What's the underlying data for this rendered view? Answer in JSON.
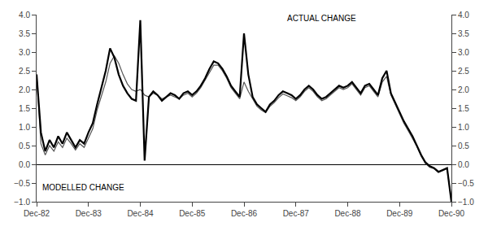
{
  "chart_data": {
    "type": "line",
    "categories": [
      "Dec-82",
      null,
      null,
      null,
      null,
      null,
      null,
      null,
      null,
      null,
      null,
      null,
      "Dec-83",
      null,
      null,
      null,
      null,
      null,
      null,
      null,
      null,
      null,
      null,
      null,
      "Dec-84",
      null,
      null,
      null,
      null,
      null,
      null,
      null,
      null,
      null,
      null,
      null,
      "Dec-85",
      null,
      null,
      null,
      null,
      null,
      null,
      null,
      null,
      null,
      null,
      null,
      "Dec-86",
      null,
      null,
      null,
      null,
      null,
      null,
      null,
      null,
      null,
      null,
      null,
      "Dec-87",
      null,
      null,
      null,
      null,
      null,
      null,
      null,
      null,
      null,
      null,
      null,
      "Dec-88",
      null,
      null,
      null,
      null,
      null,
      null,
      null,
      null,
      null,
      null,
      null,
      "Dec-89",
      null,
      null,
      null,
      null,
      null,
      null,
      null,
      null,
      null,
      null,
      null,
      "Dec-90"
    ],
    "series": [
      {
        "color": "#555555",
        "values": [
          2.4,
          0.55,
          0.25,
          0.5,
          0.35,
          0.6,
          0.45,
          0.7,
          0.55,
          0.38,
          0.55,
          0.45,
          0.7,
          0.95,
          1.45,
          1.85,
          2.2,
          2.7,
          2.9,
          2.7,
          2.4,
          2.15,
          2.0,
          1.95,
          2.0,
          1.85,
          1.8,
          1.9,
          1.85,
          1.75,
          1.8,
          1.85,
          1.8,
          1.75,
          1.85,
          1.9,
          1.8,
          1.9,
          2.05,
          2.25,
          2.45,
          2.65,
          2.65,
          2.5,
          2.3,
          2.05,
          1.9,
          1.75,
          2.2,
          1.95,
          1.75,
          1.55,
          1.45,
          1.38,
          1.55,
          1.65,
          1.78,
          1.88,
          1.83,
          1.78,
          1.7,
          1.8,
          1.95,
          2.05,
          1.95,
          1.8,
          1.7,
          1.75,
          1.85,
          1.95,
          2.05,
          2.0,
          2.05,
          2.15,
          2.0,
          1.85,
          2.05,
          2.1,
          1.95,
          1.8,
          2.2,
          2.35,
          1.85,
          1.6,
          1.35,
          1.1,
          0.9,
          0.7,
          0.48,
          0.22,
          0.02,
          -0.08,
          -0.12,
          -0.22,
          -0.17,
          -0.12,
          -0.95
        ]
      },
      {
        "color": "#000000",
        "values": [
          2.4,
          0.85,
          0.35,
          0.65,
          0.45,
          0.75,
          0.55,
          0.85,
          0.65,
          0.45,
          0.65,
          0.55,
          0.85,
          1.1,
          1.6,
          2.05,
          2.5,
          3.1,
          2.85,
          2.4,
          2.1,
          1.9,
          1.75,
          1.7,
          3.85,
          0.1,
          1.8,
          1.95,
          1.85,
          1.7,
          1.8,
          1.9,
          1.85,
          1.75,
          1.9,
          1.95,
          1.85,
          1.95,
          2.1,
          2.3,
          2.55,
          2.75,
          2.7,
          2.55,
          2.35,
          2.1,
          1.95,
          1.8,
          3.5,
          2.4,
          1.8,
          1.6,
          1.5,
          1.4,
          1.6,
          1.7,
          1.85,
          1.95,
          1.9,
          1.85,
          1.75,
          1.85,
          2.0,
          2.1,
          2.0,
          1.85,
          1.75,
          1.8,
          1.9,
          2.0,
          2.1,
          2.05,
          2.1,
          2.2,
          2.05,
          1.9,
          2.1,
          2.15,
          2.0,
          1.85,
          2.3,
          2.5,
          1.9,
          1.65,
          1.4,
          1.15,
          0.95,
          0.75,
          0.5,
          0.25,
          0.05,
          -0.05,
          -0.1,
          -0.2,
          -0.15,
          -0.1,
          -1.0
        ]
      }
    ],
    "annotations": [
      "ACTUAL CHANGE",
      "MODELLED CHANGE"
    ],
    "ylim": [
      -1,
      4
    ],
    "yticks": [
      {
        "value": -1,
        "label": "−1.0"
      },
      {
        "value": -0.5,
        "label": "−0.5"
      },
      {
        "value": 0,
        "label": "0.0"
      },
      0.5,
      {
        "value": 1,
        "label": "1.0"
      },
      1.5,
      {
        "value": 2,
        "label": "2.0"
      },
      2.5,
      {
        "value": 3,
        "label": "3.0"
      },
      3.5,
      {
        "value": 4,
        "label": "4.0"
      }
    ],
    "y2lim": [
      -1,
      4
    ],
    "y2ticks": [
      {
        "value": -1,
        "label": "−1.0"
      },
      {
        "value": -0.5,
        "label": "−0.5"
      },
      {
        "value": 0,
        "label": "0.0"
      },
      0.5,
      {
        "value": 1,
        "label": "1.0"
      },
      1.5,
      {
        "value": 2,
        "label": "2.0"
      },
      2.5,
      {
        "value": 3,
        "label": "3.0"
      },
      3.5,
      {
        "value": 4,
        "label": "4.0"
      }
    ],
    "grid": false
  }
}
